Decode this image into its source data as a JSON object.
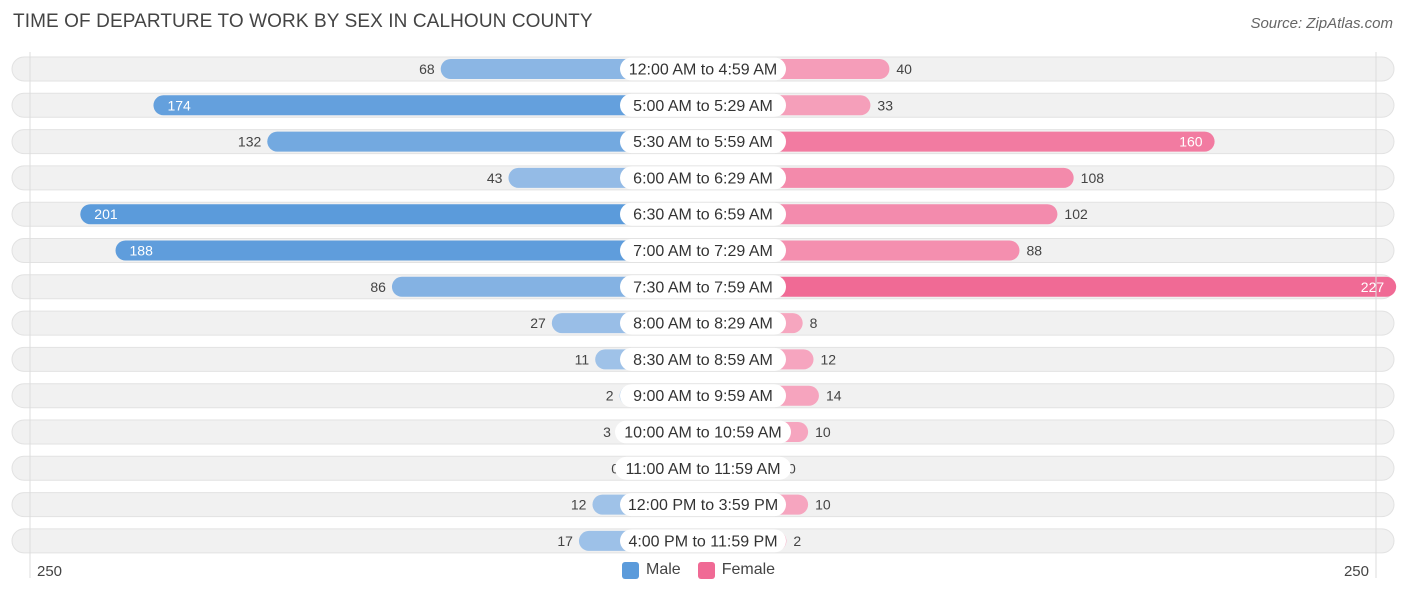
{
  "header": {
    "title": "TIME OF DEPARTURE TO WORK BY SEX IN CALHOUN COUNTY",
    "source": "Source: ZipAtlas.com"
  },
  "legend": {
    "male_label": "Male",
    "female_label": "Female"
  },
  "colors": {
    "male_strong": "#5b9bdb",
    "male_light": "#a3c4e9",
    "female_strong": "#f06a95",
    "female_light": "#f6a8c1",
    "row_bg": "#f1f1f1"
  },
  "chart_data": {
    "type": "bar",
    "orientation": "horizontal-diverging",
    "title": "TIME OF DEPARTURE TO WORK BY SEX IN CALHOUN COUNTY",
    "xlim": [
      -250,
      250
    ],
    "axis_min_label": "250",
    "axis_max_label": "250",
    "categories": [
      "12:00 AM to 4:59 AM",
      "5:00 AM to 5:29 AM",
      "5:30 AM to 5:59 AM",
      "6:00 AM to 6:29 AM",
      "6:30 AM to 6:59 AM",
      "7:00 AM to 7:29 AM",
      "7:30 AM to 7:59 AM",
      "8:00 AM to 8:29 AM",
      "8:30 AM to 8:59 AM",
      "9:00 AM to 9:59 AM",
      "10:00 AM to 10:59 AM",
      "11:00 AM to 11:59 AM",
      "12:00 PM to 3:59 PM",
      "4:00 PM to 11:59 PM"
    ],
    "series": [
      {
        "name": "Male",
        "values": [
          68,
          174,
          132,
          43,
          201,
          188,
          86,
          27,
          11,
          2,
          3,
          0,
          12,
          17
        ]
      },
      {
        "name": "Female",
        "values": [
          40,
          33,
          160,
          108,
          102,
          88,
          227,
          8,
          12,
          14,
          10,
          0,
          10,
          2
        ]
      }
    ],
    "legend_position": "bottom-center"
  }
}
